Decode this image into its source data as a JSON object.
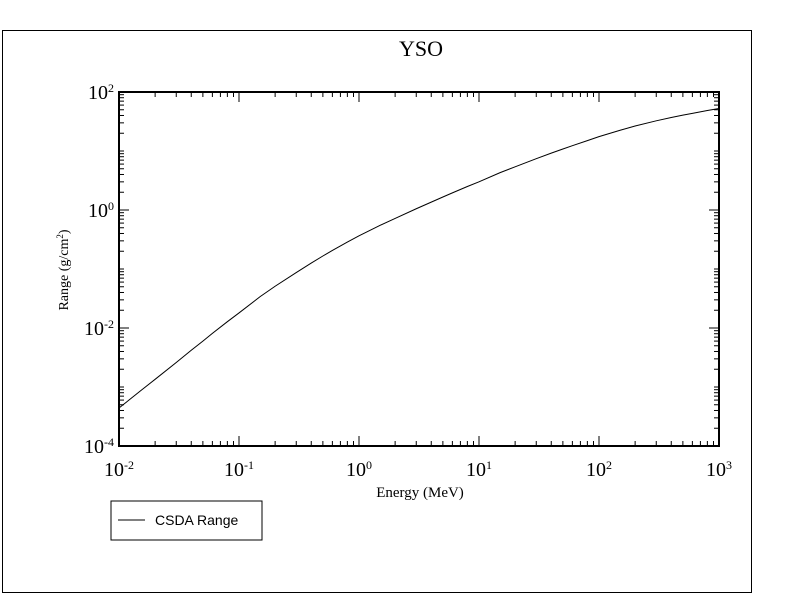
{
  "chart_data": {
    "type": "line",
    "title": "YSO",
    "xlabel": "Energy (MeV)",
    "ylabel": "Range (g/cm",
    "ylabel_sup": "2",
    "ylabel_tail": ")",
    "x_scale": "log",
    "y_scale": "log",
    "xlim": [
      0.01,
      1000
    ],
    "ylim": [
      0.0001,
      100
    ],
    "grid": false,
    "legend_position": "bottom-left",
    "x_ticks": [
      {
        "base": "10",
        "exp": "-2"
      },
      {
        "base": "10",
        "exp": "-1"
      },
      {
        "base": "10",
        "exp": "0"
      },
      {
        "base": "10",
        "exp": "1"
      },
      {
        "base": "10",
        "exp": "2"
      },
      {
        "base": "10",
        "exp": "3"
      }
    ],
    "y_ticks": [
      {
        "base": "10",
        "exp": "-4"
      },
      {
        "base": "10",
        "exp": "-2"
      },
      {
        "base": "10",
        "exp": "0"
      },
      {
        "base": "10",
        "exp": "2"
      }
    ],
    "series": [
      {
        "name": "CSDA Range",
        "color": "#000000",
        "x": [
          0.01,
          0.015,
          0.02,
          0.03,
          0.04,
          0.05,
          0.06,
          0.08,
          0.1,
          0.15,
          0.2,
          0.3,
          0.4,
          0.5,
          0.6,
          0.8,
          1,
          1.5,
          2,
          3,
          4,
          5,
          6,
          8,
          10,
          15,
          20,
          30,
          40,
          50,
          60,
          80,
          100,
          150,
          200,
          300,
          400,
          500,
          600,
          800,
          1000
        ],
        "y": [
          0.00044,
          0.00085,
          0.00135,
          0.0026,
          0.0042,
          0.006,
          0.0081,
          0.0128,
          0.018,
          0.034,
          0.051,
          0.087,
          0.126,
          0.166,
          0.206,
          0.286,
          0.365,
          0.55,
          0.72,
          1.05,
          1.36,
          1.66,
          1.95,
          2.5,
          3.0,
          4.3,
          5.4,
          7.4,
          9.2,
          10.8,
          12.3,
          15.0,
          17.5,
          22.5,
          26.5,
          32.5,
          37.0,
          40.5,
          43.5,
          48.5,
          52.5
        ]
      }
    ]
  }
}
